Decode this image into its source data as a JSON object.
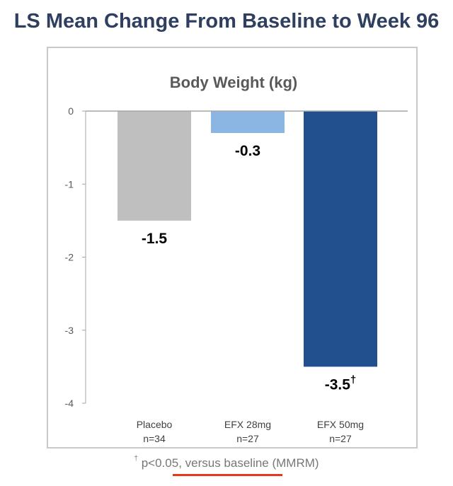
{
  "page": {
    "heading": "LS Mean Change From Baseline to Week 96",
    "footnote_dagger": "†",
    "footnote_text": "p<0.05, versus baseline (MMRM)",
    "underline_color": "#e8381b"
  },
  "chart_data": {
    "type": "bar",
    "title": "Body Weight (kg)",
    "xlabel": "",
    "ylabel": "",
    "ylim": [
      -4,
      0
    ],
    "yticks": [
      "0",
      "-1",
      "-2",
      "-3",
      "-4"
    ],
    "grid": false,
    "categories": [
      "Placebo",
      "EFX 28mg",
      "EFX 50mg"
    ],
    "category_n": [
      "n=34",
      "n=27",
      "n=27"
    ],
    "values": [
      -1.5,
      -0.3,
      -3.5
    ],
    "value_labels": [
      "-1.5",
      "-0.3",
      "-3.5"
    ],
    "value_label_marks": [
      "",
      "",
      "†"
    ],
    "colors": [
      "#bfbfbf",
      "#8bb6e3",
      "#22508f"
    ]
  }
}
